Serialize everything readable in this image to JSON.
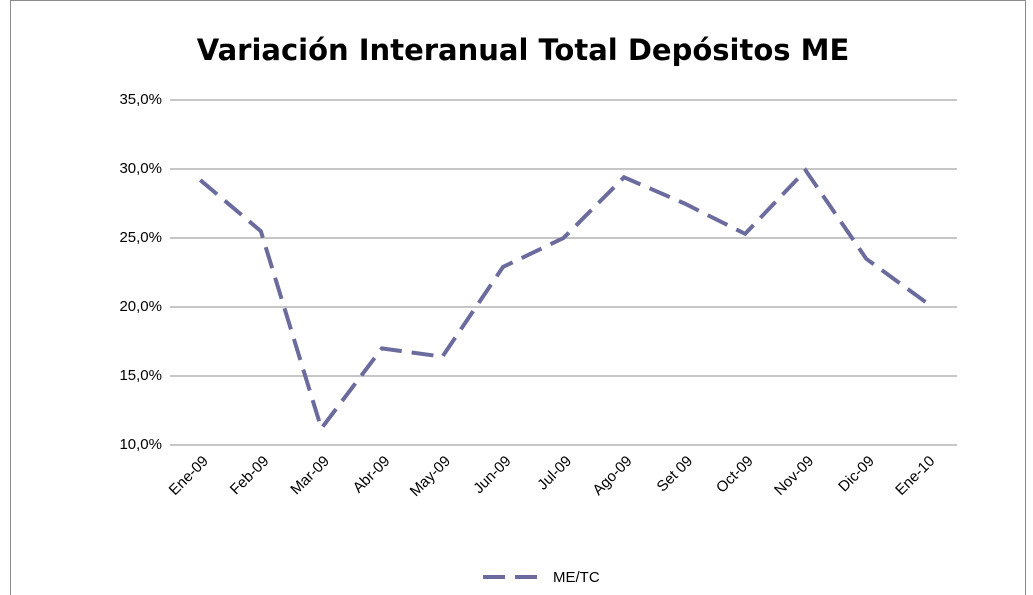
{
  "chart_data": {
    "type": "line",
    "title": "Variación Interanual Total Depósitos ME",
    "categories": [
      "Ene-09",
      "Feb-09",
      "Mar-09",
      "Abr-09",
      "May-09",
      "Jun-09",
      "Jul-09",
      "Ago-09",
      "Set 09",
      "Oct-09",
      "Nov-09",
      "Dic-09",
      "Ene-10"
    ],
    "series": [
      {
        "name": "ME/TC",
        "color": "#6b6b9e",
        "values": [
          29.2,
          25.5,
          11.2,
          17.0,
          16.4,
          22.9,
          25.0,
          29.4,
          27.5,
          25.3,
          29.9,
          23.5,
          20.3
        ]
      }
    ],
    "ylim": [
      10,
      35
    ],
    "yticks": [
      {
        "value": 10,
        "label": "10,0%"
      },
      {
        "value": 15,
        "label": "15,0%"
      },
      {
        "value": 20,
        "label": "20,0%"
      },
      {
        "value": 25,
        "label": "25,0%"
      },
      {
        "value": 30,
        "label": "30,0%"
      },
      {
        "value": 35,
        "label": "35,0%"
      }
    ],
    "grid": true,
    "legend": "bottom"
  }
}
